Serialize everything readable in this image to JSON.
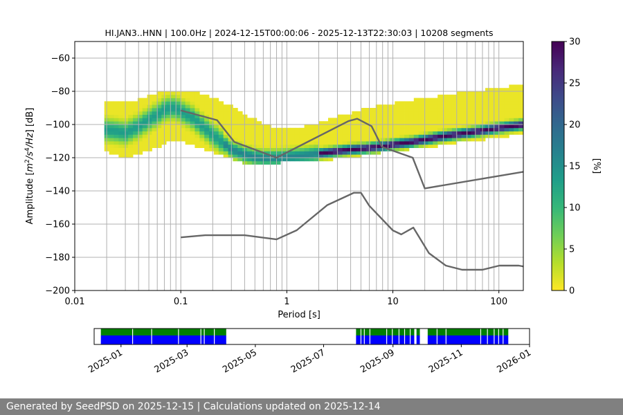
{
  "chart_data": {
    "type": "heatmap",
    "title": "HI.JAN3..HNN | 100.0Hz | 2024-12-15T00:00:06 - 2025-12-13T22:30:03 | 10208 segments",
    "xlabel": "Period [s]",
    "ylabel": {
      "prefix": "Amplitude [",
      "m": "m",
      "exp2": "2",
      "s": "/s",
      "exp4": "4",
      "hz": "/Hz",
      "suffix": "] [dB]"
    },
    "xscale": "log",
    "xlim": [
      0.01,
      170
    ],
    "ylim": [
      -200,
      -50
    ],
    "x_ticks": [
      {
        "value": 0.01,
        "label": "0.01"
      },
      {
        "value": 0.1,
        "label": "0.1"
      },
      {
        "value": 1,
        "label": "1"
      },
      {
        "value": 10,
        "label": "10"
      },
      {
        "value": 100,
        "label": "100"
      }
    ],
    "y_ticks": [
      {
        "value": -60,
        "label": "−60"
      },
      {
        "value": -80,
        "label": "−80"
      },
      {
        "value": -100,
        "label": "−100"
      },
      {
        "value": -120,
        "label": "−120"
      },
      {
        "value": -140,
        "label": "−140"
      },
      {
        "value": -160,
        "label": "−160"
      },
      {
        "value": -180,
        "label": "−180"
      },
      {
        "value": -200,
        "label": "−200"
      }
    ],
    "vertical_gridlines_period_s": [
      0.02,
      0.03,
      0.04,
      0.05,
      0.06,
      0.07,
      0.08,
      0.09,
      0.1,
      0.2,
      0.3,
      0.4,
      0.5,
      0.6,
      0.7,
      0.8,
      0.9,
      1,
      2,
      3,
      4,
      5,
      6,
      7,
      8,
      9,
      10,
      20,
      30,
      40,
      50,
      60,
      70,
      80,
      90,
      100
    ],
    "horizontal_gridlines_db": [
      -60,
      -80,
      -100,
      -120,
      -140,
      -160,
      -180,
      -200
    ],
    "psd_mode": {
      "period_s": [
        0.019,
        0.025,
        0.03,
        0.04,
        0.05,
        0.06,
        0.07,
        0.08,
        0.09,
        0.1,
        0.13,
        0.16,
        0.2,
        0.25,
        0.3,
        0.4,
        0.5,
        0.6,
        0.7,
        0.8,
        1,
        1.5,
        2,
        3,
        4,
        5,
        6,
        8,
        10,
        15,
        20,
        30,
        50,
        80,
        100,
        170
      ],
      "db": [
        -103,
        -104,
        -105,
        -101,
        -97,
        -94,
        -91,
        -90,
        -90,
        -92,
        -96,
        -101,
        -106,
        -111,
        -115,
        -118,
        -119.5,
        -120,
        -120,
        -120,
        -119.5,
        -118.5,
        -117.5,
        -116,
        -115,
        -114.5,
        -114,
        -113,
        -112,
        -110.5,
        -109,
        -107,
        -105,
        -103,
        -102,
        -100
      ]
    },
    "psd_spread": {
      "period_s": [
        0.019,
        0.03,
        0.06,
        0.09,
        0.15,
        0.25,
        0.4,
        0.7,
        1,
        2,
        5,
        10,
        20,
        50,
        100,
        170
      ],
      "upper_db": [
        -86,
        -88,
        -82,
        -80,
        -82,
        -87,
        -95,
        -102,
        -104,
        -100,
        -92,
        -88,
        -85,
        -81,
        -79,
        -76
      ],
      "lower_db": [
        -114,
        -120,
        -113,
        -108,
        -113,
        -118,
        -122,
        -123,
        -121,
        -121,
        -118,
        -115,
        -113,
        -109,
        -107,
        -104
      ]
    },
    "noise_model_high": {
      "period_s": [
        0.1,
        0.22,
        0.32,
        0.8,
        3.8,
        4.6,
        6.3,
        7.9,
        15.4,
        20,
        170
      ],
      "db": [
        -91.5,
        -97.4,
        -110.5,
        -120,
        -98,
        -96.5,
        -101,
        -113.5,
        -120,
        -138.5,
        -128.5
      ]
    },
    "noise_model_low": {
      "period_s": [
        0.1,
        0.17,
        0.4,
        0.8,
        1.24,
        2.4,
        4.3,
        5,
        6,
        10,
        12,
        15.6,
        21.9,
        31.6,
        45,
        70,
        101,
        154,
        170
      ],
      "db": [
        -168,
        -166.7,
        -166.7,
        -169.2,
        -163.7,
        -148.6,
        -141.1,
        -141.1,
        -149,
        -163.8,
        -166.2,
        -162.1,
        -177.5,
        -185,
        -187.5,
        -187.5,
        -185,
        -185,
        -185.5
      ]
    },
    "colorbar": {
      "label": "[%]",
      "min": 0,
      "max": 30,
      "ticks": [
        {
          "value": 0,
          "label": "0"
        },
        {
          "value": 5,
          "label": "5"
        },
        {
          "value": 10,
          "label": "10"
        },
        {
          "value": 15,
          "label": "15"
        },
        {
          "value": 20,
          "label": "20"
        },
        {
          "value": 25,
          "label": "25"
        },
        {
          "value": 30,
          "label": "30"
        }
      ],
      "stops": [
        "#fde725",
        "#b5de2b",
        "#6ece58",
        "#35b779",
        "#1f9e89",
        "#26828e",
        "#31688e",
        "#3e4989",
        "#482878",
        "#440154"
      ]
    },
    "availability": {
      "start": "2024-12-15",
      "end": "2026-01-01",
      "axis_range": [
        "2024-12-08",
        "2026-01-01"
      ],
      "data_color": "#0000ff",
      "gap_color": "#008000",
      "x_ticks": [
        {
          "date": "2025-01-01",
          "label": "2025-01"
        },
        {
          "date": "2025-03-01",
          "label": "2025-03"
        },
        {
          "date": "2025-05-01",
          "label": "2025-05"
        },
        {
          "date": "2025-07-01",
          "label": "2025-07"
        },
        {
          "date": "2025-09-01",
          "label": "2025-09"
        },
        {
          "date": "2025-11-01",
          "label": "2025-11"
        },
        {
          "date": "2026-01-01",
          "label": "2026-01"
        }
      ],
      "coverage": [
        [
          "2024-12-14",
          "2025-04-05"
        ],
        [
          "2025-07-30",
          "2025-09-20"
        ],
        [
          "2025-09-22",
          "2025-09-25"
        ],
        [
          "2025-10-02",
          "2025-12-13"
        ]
      ],
      "gaps": [
        "2025-01-11",
        "2025-01-28",
        "2025-02-21",
        "2025-03-13",
        "2025-03-16",
        "2025-03-25",
        "2025-08-03",
        "2025-08-06",
        "2025-08-11",
        "2025-08-26",
        "2025-08-31",
        "2025-09-06",
        "2025-09-11",
        "2025-09-16",
        "2025-10-10",
        "2025-10-18",
        "2025-11-18",
        "2025-11-24",
        "2025-11-30",
        "2025-12-04",
        "2025-12-08"
      ]
    }
  },
  "footer": {
    "text": "Generated by SeedPSD on 2025-12-15 | Calculations updated on 2025-12-14"
  }
}
